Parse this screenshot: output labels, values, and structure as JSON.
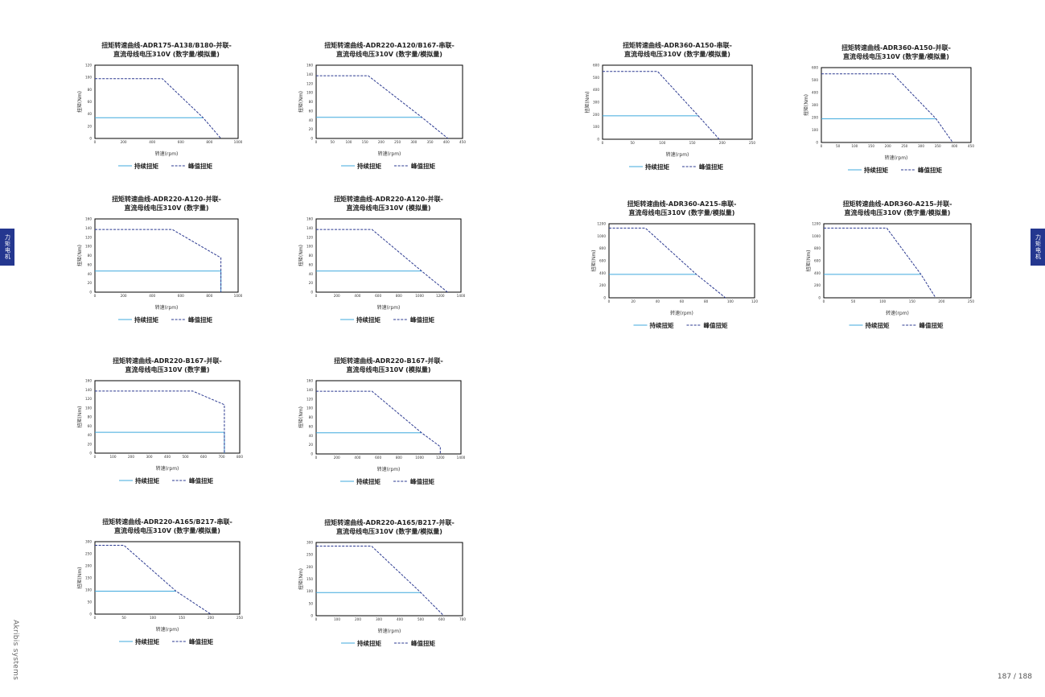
{
  "side_tab": {
    "text": "力矩电机"
  },
  "brand": "Akribis systems",
  "page_number": "187 / 188",
  "colors": {
    "continuous": "#3fa9dd",
    "peak": "#2b3990",
    "frame": "#000000",
    "tab": "#24378f"
  },
  "chart_data": [
    {
      "type": "line",
      "title": [
        "扭矩转速曲线-ADR175-A138/B180-并联-",
        "直流母线电压310V (数字量/模拟量)"
      ],
      "xlabel": "转速(rpm)",
      "ylabel": "扭矩(Nm)",
      "xlim": [
        0,
        1000
      ],
      "xticks": [
        0,
        200,
        400,
        600,
        800,
        1000
      ],
      "ylim": [
        0,
        120
      ],
      "yticks": [
        0,
        20,
        40,
        60,
        80,
        100,
        120
      ],
      "legend": [
        "持续扭矩",
        "峰值扭矩"
      ],
      "series": [
        {
          "name": "持续扭矩",
          "x": [
            0,
            755
          ],
          "y": [
            34,
            34
          ]
        },
        {
          "name": "峰值扭矩",
          "x": [
            0,
            470,
            755,
            880
          ],
          "y": [
            98,
            98,
            34,
            0
          ]
        }
      ]
    },
    {
      "type": "line",
      "title": [
        "扭矩转速曲线-ADR220-A120/B167-串联-",
        "直流母线电压310V (数字量/模拟量)"
      ],
      "xlabel": "转速(rpm)",
      "ylabel": "扭矩(Nm)",
      "xlim": [
        0,
        450
      ],
      "xticks": [
        0,
        50,
        100,
        150,
        200,
        250,
        300,
        350,
        400,
        450
      ],
      "ylim": [
        0,
        160
      ],
      "yticks": [
        0,
        20,
        40,
        60,
        80,
        100,
        120,
        140,
        160
      ],
      "legend": [
        "持续扭矩",
        "峰值扭矩"
      ],
      "series": [
        {
          "name": "持续扭矩",
          "x": [
            0,
            325
          ],
          "y": [
            46,
            46
          ]
        },
        {
          "name": "峰值扭矩",
          "x": [
            0,
            160,
            325,
            405
          ],
          "y": [
            137,
            137,
            46,
            0
          ]
        }
      ]
    },
    {
      "type": "line",
      "title": [
        "扭矩转速曲线-ADR360-A150-串联-",
        "直流母线电压310V (数字量/模拟量)"
      ],
      "xlabel": "转速(rpm)",
      "ylabel": "扭矩(Nm)",
      "xlim": [
        0,
        250
      ],
      "xticks": [
        0,
        50,
        100,
        150,
        200,
        250
      ],
      "ylim": [
        0,
        600
      ],
      "yticks": [
        0,
        100,
        200,
        300,
        400,
        500,
        600
      ],
      "legend": [
        "持续扭矩",
        "峰值扭矩"
      ],
      "series": [
        {
          "name": "持续扭矩",
          "x": [
            0,
            160
          ],
          "y": [
            190,
            190
          ]
        },
        {
          "name": "峰值扭矩",
          "x": [
            0,
            92,
            160,
            195
          ],
          "y": [
            550,
            550,
            190,
            0
          ]
        }
      ]
    },
    {
      "type": "line",
      "title": [
        "扭矩转速曲线-ADR360-A150-并联-",
        "直流母线电压310V (数字量/模拟量)"
      ],
      "xlabel": "转速(rpm)",
      "ylabel": "扭矩(Nm)",
      "xlim": [
        0,
        450
      ],
      "xticks": [
        0,
        50,
        100,
        150,
        200,
        250,
        300,
        350,
        400,
        450
      ],
      "ylim": [
        0,
        600
      ],
      "yticks": [
        0,
        100,
        200,
        300,
        400,
        500,
        600
      ],
      "legend": [
        "持续扭矩",
        "峰值扭矩"
      ],
      "series": [
        {
          "name": "持续扭矩",
          "x": [
            0,
            345
          ],
          "y": [
            190,
            190
          ]
        },
        {
          "name": "峰值扭矩",
          "x": [
            0,
            215,
            345,
            395
          ],
          "y": [
            550,
            550,
            190,
            0
          ]
        }
      ]
    },
    {
      "type": "line",
      "title": [
        "扭矩转速曲线-ADR220-A120-并联-",
        "直流母线电压310V (数字量)"
      ],
      "xlabel": "转速(rpm)",
      "ylabel": "扭矩(Nm)",
      "xlim": [
        0,
        1000
      ],
      "xticks": [
        0,
        200,
        400,
        600,
        800,
        1000
      ],
      "ylim": [
        0,
        160
      ],
      "yticks": [
        0,
        20,
        40,
        60,
        80,
        100,
        120,
        140,
        160
      ],
      "legend": [
        "持续扭矩",
        "峰值扭矩"
      ],
      "series": [
        {
          "name": "持续扭矩",
          "x": [
            0,
            880,
            880
          ],
          "y": [
            46,
            46,
            0
          ]
        },
        {
          "name": "峰值扭矩",
          "x": [
            0,
            540,
            880,
            880
          ],
          "y": [
            137,
            137,
            75,
            0
          ]
        }
      ]
    },
    {
      "type": "line",
      "title": [
        "扭矩转速曲线-ADR220-A120-并联-",
        "直流母线电压310V (模拟量)"
      ],
      "xlabel": "转速(rpm)",
      "ylabel": "扭矩(Nm)",
      "xlim": [
        0,
        1400
      ],
      "xticks": [
        0,
        200,
        400,
        600,
        800,
        1000,
        1200,
        1400
      ],
      "ylim": [
        0,
        160
      ],
      "yticks": [
        0,
        20,
        40,
        60,
        80,
        100,
        120,
        140,
        160
      ],
      "legend": [
        "持续扭矩",
        "峰值扭矩"
      ],
      "series": [
        {
          "name": "持续扭矩",
          "x": [
            0,
            1020
          ],
          "y": [
            46,
            46
          ]
        },
        {
          "name": "峰值扭矩",
          "x": [
            0,
            540,
            1020,
            1270
          ],
          "y": [
            137,
            137,
            46,
            0
          ]
        }
      ]
    },
    {
      "type": "line",
      "title": [
        "扭矩转速曲线-ADR360-A215-串联-",
        "直流母线电压310V (数字量/模拟量)"
      ],
      "xlabel": "转速(rpm)",
      "ylabel": "扭矩(Nm)",
      "xlim": [
        0,
        120
      ],
      "xticks": [
        0,
        20,
        40,
        60,
        80,
        100,
        120
      ],
      "ylim": [
        0,
        1200
      ],
      "yticks": [
        0,
        200,
        400,
        600,
        800,
        1000,
        1200
      ],
      "legend": [
        "持续扭矩",
        "峰值扭矩"
      ],
      "series": [
        {
          "name": "持续扭矩",
          "x": [
            0,
            72
          ],
          "y": [
            380,
            380
          ]
        },
        {
          "name": "峰值扭矩",
          "x": [
            0,
            30,
            72,
            96
          ],
          "y": [
            1130,
            1130,
            380,
            0
          ]
        }
      ]
    },
    {
      "type": "line",
      "title": [
        "扭矩转速曲线-ADR360-A215-并联-",
        "直流母线电压310V (数字量/模拟量)"
      ],
      "xlabel": "转速(rpm)",
      "ylabel": "扭矩(Nm)",
      "xlim": [
        0,
        250
      ],
      "xticks": [
        0,
        50,
        100,
        150,
        200,
        250
      ],
      "ylim": [
        0,
        1200
      ],
      "yticks": [
        0,
        200,
        400,
        600,
        800,
        1000,
        1200
      ],
      "legend": [
        "持续扭矩",
        "峰值扭矩"
      ],
      "series": [
        {
          "name": "持续扭矩",
          "x": [
            0,
            165
          ],
          "y": [
            380,
            380
          ]
        },
        {
          "name": "峰值扭矩",
          "x": [
            0,
            107,
            165,
            190
          ],
          "y": [
            1130,
            1130,
            380,
            0
          ]
        }
      ]
    },
    {
      "type": "line",
      "title": [
        "扭矩转速曲线-ADR220-B167-并联-",
        "直流母线电压310V (数字量)"
      ],
      "xlabel": "转速(rpm)",
      "ylabel": "扭矩(Nm)",
      "xlim": [
        0,
        800
      ],
      "xticks": [
        0,
        100,
        200,
        300,
        400,
        500,
        600,
        700,
        800
      ],
      "ylim": [
        0,
        160
      ],
      "yticks": [
        0,
        20,
        40,
        60,
        80,
        100,
        120,
        140,
        160
      ],
      "legend": [
        "持续扭矩",
        "峰值扭矩"
      ],
      "series": [
        {
          "name": "持续扭矩",
          "x": [
            0,
            715,
            715
          ],
          "y": [
            46,
            46,
            0
          ]
        },
        {
          "name": "峰值扭矩",
          "x": [
            0,
            540,
            715,
            715
          ],
          "y": [
            137,
            137,
            107,
            0
          ]
        }
      ]
    },
    {
      "type": "line",
      "title": [
        "扭矩转速曲线-ADR220-B167-并联-",
        "直流母线电压310V (模拟量)"
      ],
      "xlabel": "转速(rpm)",
      "ylabel": "扭矩(Nm)",
      "xlim": [
        0,
        1400
      ],
      "xticks": [
        0,
        200,
        400,
        600,
        800,
        1000,
        1200,
        1400
      ],
      "ylim": [
        0,
        160
      ],
      "yticks": [
        0,
        20,
        40,
        60,
        80,
        100,
        120,
        140,
        160
      ],
      "legend": [
        "持续扭矩",
        "峰值扭矩"
      ],
      "series": [
        {
          "name": "持续扭矩",
          "x": [
            0,
            1020
          ],
          "y": [
            46,
            46
          ]
        },
        {
          "name": "峰值扭矩",
          "x": [
            0,
            540,
            1020,
            1200,
            1200
          ],
          "y": [
            137,
            137,
            46,
            16,
            0
          ]
        }
      ]
    },
    {
      "type": "line",
      "title": [
        "扭矩转速曲线-ADR220-A165/B217-串联-",
        "直流母线电压310V (数字量/模拟量)"
      ],
      "xlabel": "转速(rpm)",
      "ylabel": "扭矩(Nm)",
      "xlim": [
        0,
        250
      ],
      "xticks": [
        0,
        50,
        100,
        150,
        200,
        250
      ],
      "ylim": [
        0,
        300
      ],
      "yticks": [
        0,
        50,
        100,
        150,
        200,
        250,
        300
      ],
      "legend": [
        "持续扭矩",
        "峰值扭矩"
      ],
      "series": [
        {
          "name": "持续扭矩",
          "x": [
            0,
            140
          ],
          "y": [
            95,
            95
          ]
        },
        {
          "name": "峰值扭矩",
          "x": [
            0,
            50,
            140,
            200
          ],
          "y": [
            285,
            285,
            95,
            0
          ]
        }
      ]
    },
    {
      "type": "line",
      "title": [
        "扭矩转速曲线-ADR220-A165/B217-并联-",
        "直流母线电压310V (数字量/模拟量)"
      ],
      "xlabel": "转速(rpm)",
      "ylabel": "扭矩(Nm)",
      "xlim": [
        0,
        700
      ],
      "xticks": [
        0,
        100,
        200,
        300,
        400,
        500,
        600,
        700
      ],
      "ylim": [
        0,
        300
      ],
      "yticks": [
        0,
        50,
        100,
        150,
        200,
        250,
        300
      ],
      "legend": [
        "持续扭矩",
        "峰值扭矩"
      ],
      "series": [
        {
          "name": "持续扭矩",
          "x": [
            0,
            500
          ],
          "y": [
            95,
            95
          ]
        },
        {
          "name": "峰值扭矩",
          "x": [
            0,
            265,
            500,
            610
          ],
          "y": [
            285,
            285,
            95,
            0
          ]
        }
      ]
    }
  ]
}
